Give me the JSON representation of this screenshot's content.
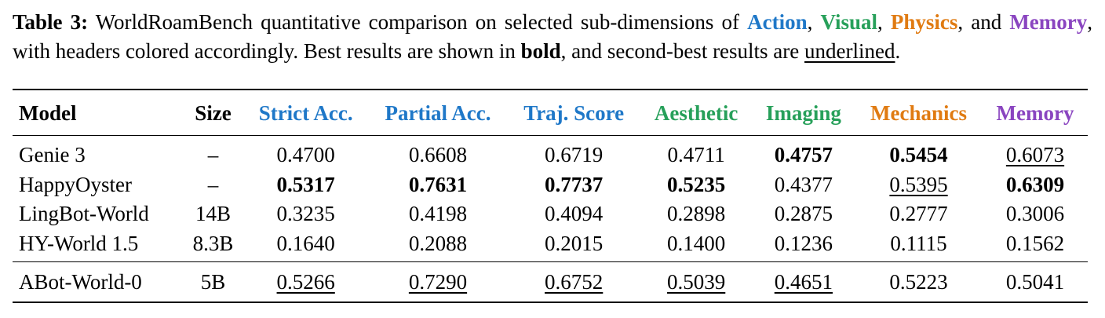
{
  "caption": {
    "label": "Table 3:",
    "text_1": " WorldRoamBench quantitative comparison on selected sub-dimensions of ",
    "action": "Action",
    "sep_1": ", ",
    "visual": "Visual",
    "sep_2": ", ",
    "physics": "Physics",
    "text_2": ", and ",
    "memory": "Memory",
    "text_3": ", with headers colored accordingly. Best results are shown in ",
    "bold_word": "bold",
    "text_4": ", and second-best results are ",
    "underlined_word": "underlined",
    "text_5": "."
  },
  "colors": {
    "action": "#1f78c8",
    "visual": "#27a05a",
    "physics": "#e07b12",
    "memory": "#8a45c0"
  },
  "table": {
    "headers": [
      {
        "label": "Model",
        "group": "none"
      },
      {
        "label": "Size",
        "group": "none"
      },
      {
        "label": "Strict Acc.",
        "group": "action"
      },
      {
        "label": "Partial Acc.",
        "group": "action"
      },
      {
        "label": "Traj. Score",
        "group": "action"
      },
      {
        "label": "Aesthetic",
        "group": "visual"
      },
      {
        "label": "Imaging",
        "group": "visual"
      },
      {
        "label": "Mechanics",
        "group": "physics"
      },
      {
        "label": "Memory",
        "group": "memory"
      }
    ],
    "rows": [
      {
        "model": "Genie 3",
        "size": "–",
        "values": [
          "0.4700",
          "0.6608",
          "0.6719",
          "0.4711",
          "0.4757",
          "0.5454",
          "0.6073"
        ],
        "marks": [
          "",
          "",
          "",
          "",
          "best",
          "best",
          "second"
        ]
      },
      {
        "model": "HappyOyster",
        "size": "–",
        "values": [
          "0.5317",
          "0.7631",
          "0.7737",
          "0.5235",
          "0.4377",
          "0.5395",
          "0.6309"
        ],
        "marks": [
          "best",
          "best",
          "best",
          "best",
          "",
          "second",
          "best"
        ]
      },
      {
        "model": "LingBot-World",
        "size": "14B",
        "values": [
          "0.3235",
          "0.4198",
          "0.4094",
          "0.2898",
          "0.2875",
          "0.2777",
          "0.3006"
        ],
        "marks": [
          "",
          "",
          "",
          "",
          "",
          "",
          ""
        ]
      },
      {
        "model": "HY-World 1.5",
        "size": "8.3B",
        "values": [
          "0.1640",
          "0.2088",
          "0.2015",
          "0.1400",
          "0.1236",
          "0.1115",
          "0.1562"
        ],
        "marks": [
          "",
          "",
          "",
          "",
          "",
          "",
          ""
        ]
      },
      {
        "model": "ABot-World-0",
        "size": "5B",
        "values": [
          "0.5266",
          "0.7290",
          "0.6752",
          "0.5039",
          "0.4651",
          "0.5223",
          "0.5041"
        ],
        "marks": [
          "second",
          "second",
          "second",
          "second",
          "second",
          "",
          ""
        ]
      }
    ]
  }
}
